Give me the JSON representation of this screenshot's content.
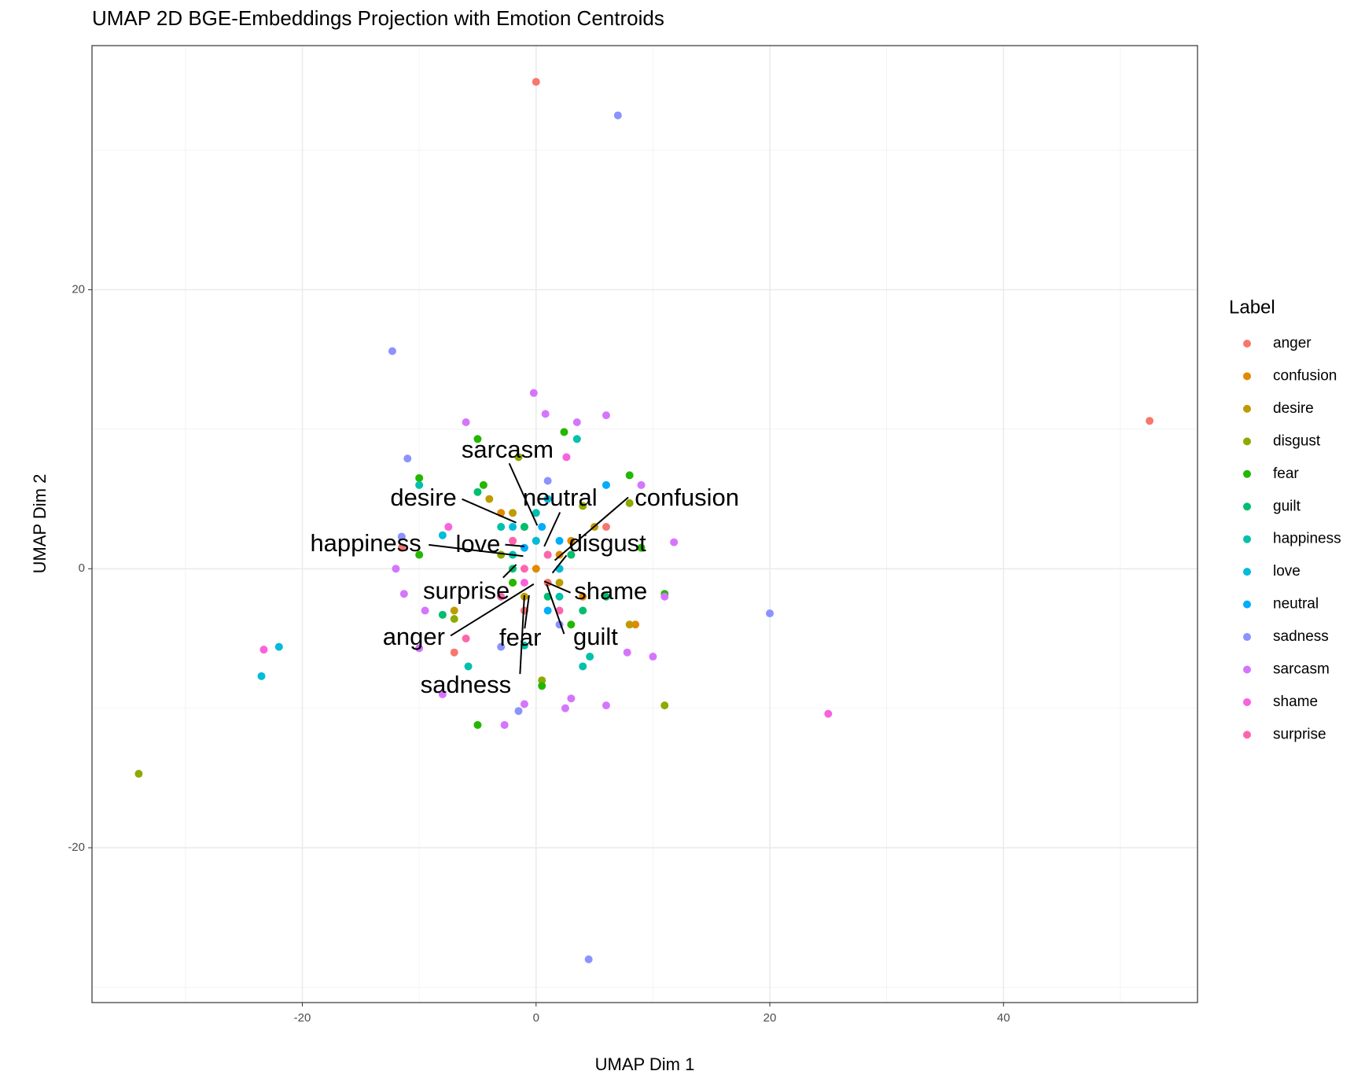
{
  "chart_data": {
    "type": "scatter",
    "title": "UMAP 2D BGE-Embeddings Projection with Emotion Centroids",
    "x_label": "UMAP Dim 1",
    "y_label": "UMAP Dim 2",
    "legend_title": "Label",
    "xlim": [
      -38,
      56.6
    ],
    "ylim": [
      -31.1,
      37.5
    ],
    "xticks": [
      -20,
      0,
      20,
      40
    ],
    "yticks": [
      -20,
      0,
      20
    ],
    "grid": true,
    "legend": "right",
    "series": [
      {
        "name": "anger",
        "color": "#F8766D",
        "x": [
          0,
          52.5,
          -11.5,
          -7,
          1,
          -2,
          2,
          6,
          -1,
          3
        ],
        "y": [
          34.9,
          10.6,
          1.5,
          -6,
          -1,
          2,
          0,
          3,
          -3,
          1
        ]
      },
      {
        "name": "confusion",
        "color": "#E18A00",
        "x": [
          -1,
          2,
          -3,
          8.5,
          4,
          0,
          -2,
          3
        ],
        "y": [
          3,
          1,
          4,
          -4,
          -2,
          0,
          -1,
          2
        ]
      },
      {
        "name": "desire",
        "color": "#BE9C00",
        "x": [
          -2,
          -7,
          8,
          0,
          -4,
          2,
          5,
          -1
        ],
        "y": [
          4,
          -3,
          -4,
          2,
          5,
          -1,
          3,
          -2
        ]
      },
      {
        "name": "disgust",
        "color": "#8CAB00",
        "x": [
          -34,
          11,
          -7,
          -1.5,
          4,
          8,
          0.5,
          -3
        ],
        "y": [
          -14.7,
          -9.8,
          -3.6,
          8,
          4.5,
          4.7,
          -8,
          1
        ]
      },
      {
        "name": "fear",
        "color": "#24B700",
        "x": [
          -5,
          -10,
          8,
          -5,
          11,
          2.4,
          0.5,
          -10,
          -4.5,
          3,
          9,
          -2
        ],
        "y": [
          9.3,
          6.5,
          6.7,
          -11.2,
          -1.8,
          9.8,
          -8.4,
          1,
          6,
          -4,
          1.5,
          -1
        ]
      },
      {
        "name": "guilt",
        "color": "#00BE70",
        "x": [
          -5,
          -8,
          4,
          6,
          -1,
          1,
          -2,
          3
        ],
        "y": [
          5.5,
          -3.3,
          -3,
          -2,
          3,
          -2,
          0,
          1
        ]
      },
      {
        "name": "happiness",
        "color": "#00C1AB",
        "x": [
          -10,
          3.5,
          -5.8,
          4,
          4.6,
          -1,
          -3,
          1,
          0,
          2,
          -2
        ],
        "y": [
          6,
          9.3,
          -7,
          -7,
          -6.3,
          -5.5,
          3,
          1,
          4,
          -2,
          1
        ]
      },
      {
        "name": "love",
        "color": "#00BBDA",
        "x": [
          -22,
          -23.5,
          -8,
          0,
          2,
          -2,
          1
        ],
        "y": [
          -5.6,
          -7.7,
          2.4,
          2,
          0,
          3,
          5
        ]
      },
      {
        "name": "neutral",
        "color": "#00ACFC",
        "x": [
          0.5,
          -1,
          2,
          -3,
          1,
          6
        ],
        "y": [
          3,
          1.5,
          2,
          -2,
          -3,
          6
        ]
      },
      {
        "name": "sadness",
        "color": "#8B93FF",
        "x": [
          7,
          -12.3,
          20,
          4.5,
          -11,
          -11.5,
          -1.5,
          -3,
          1,
          2
        ],
        "y": [
          32.5,
          15.6,
          -3.2,
          -28,
          7.9,
          2.3,
          -10.2,
          -5.6,
          6.3,
          -4
        ]
      },
      {
        "name": "sarcasm",
        "color": "#D575FE",
        "x": [
          -0.2,
          0.8,
          6,
          -6,
          3.5,
          11.8,
          -12,
          -11.3,
          -10,
          7.8,
          10,
          -2.7,
          2.5,
          6,
          -8,
          -9.5,
          9,
          11,
          3,
          -1
        ],
        "y": [
          12.6,
          11.1,
          11,
          10.5,
          10.5,
          1.9,
          0,
          -1.8,
          -5.7,
          -6,
          -6.3,
          -11.2,
          -10,
          -9.8,
          -9,
          -3,
          6,
          -2,
          -9.3,
          -9.7
        ]
      },
      {
        "name": "shame",
        "color": "#F962DD",
        "x": [
          -23.3,
          25,
          2.6,
          -7.5,
          -1
        ],
        "y": [
          -5.8,
          -10.4,
          8,
          3,
          -1
        ]
      },
      {
        "name": "surprise",
        "color": "#FF65AC",
        "x": [
          -3,
          -1,
          1,
          -6,
          2,
          -2
        ],
        "y": [
          -2,
          0,
          1,
          -5,
          -3,
          2
        ]
      }
    ],
    "centroids": [
      {
        "label": "sarcasm",
        "x": 0.1,
        "y": 3.1
      },
      {
        "label": "desire",
        "x": -1.7,
        "y": 3.3
      },
      {
        "label": "neutral",
        "x": 0.7,
        "y": 1.6
      },
      {
        "label": "confusion",
        "x": 1.6,
        "y": 0.6
      },
      {
        "label": "happiness",
        "x": -1.1,
        "y": 0.9
      },
      {
        "label": "love",
        "x": -1.0,
        "y": 1.6
      },
      {
        "label": "disgust",
        "x": 1.4,
        "y": -0.3
      },
      {
        "label": "surprise",
        "x": -1.7,
        "y": 0.3
      },
      {
        "label": "shame",
        "x": 0.7,
        "y": -0.9
      },
      {
        "label": "anger",
        "x": -0.2,
        "y": -1.1
      },
      {
        "label": "fear",
        "x": -0.6,
        "y": -1.9
      },
      {
        "label": "guilt",
        "x": 0.9,
        "y": -1.1
      },
      {
        "label": "sadness",
        "x": -1.0,
        "y": -1.9
      }
    ]
  }
}
